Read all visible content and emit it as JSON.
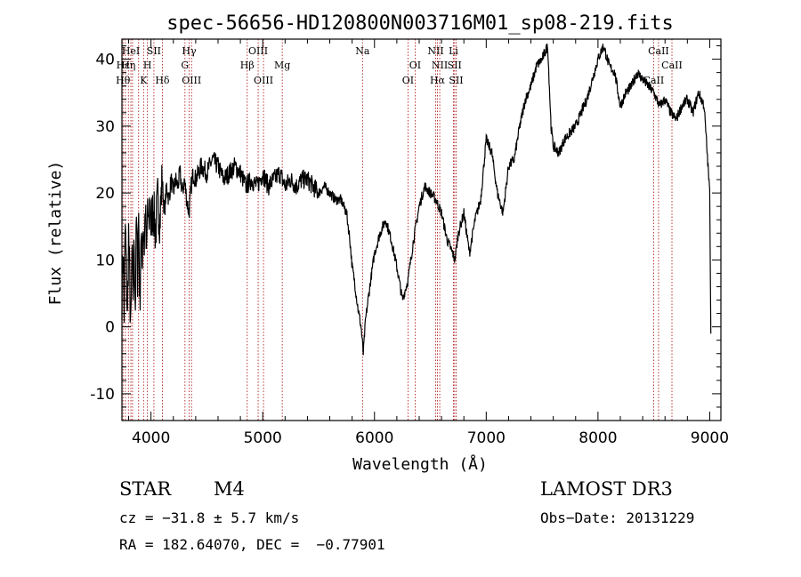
{
  "chart_data": {
    "type": "line",
    "title": "spec-56656-HD120800N003716M01_sp08-219.fits",
    "xlabel": "Wavelength (Å)",
    "ylabel": "Flux (relative)",
    "xlim": [
      3740,
      9100
    ],
    "ylim": [
      -14,
      43
    ],
    "xticks": [
      4000,
      5000,
      6000,
      7000,
      8000,
      9000
    ],
    "yticks": [
      -10,
      0,
      10,
      20,
      30,
      40
    ],
    "grid": false,
    "line_color": "#000000",
    "marker_color": "#b22222",
    "series": [
      {
        "x": [
          3740,
          3750,
          3760,
          3770,
          3780,
          3790,
          3800,
          3810,
          3820,
          3830,
          3840,
          3850,
          3860,
          3870,
          3880,
          3890,
          3900,
          3910,
          3920,
          3930,
          3940,
          3950,
          3960,
          3970,
          3980,
          3990,
          4000,
          4020,
          4040,
          4060,
          4080,
          4100,
          4120,
          4140,
          4160,
          4180,
          4200,
          4220,
          4240,
          4260,
          4280,
          4300,
          4320,
          4340,
          4360,
          4380,
          4400,
          4450,
          4500,
          4550,
          4600,
          4650,
          4700,
          4750,
          4800,
          4850,
          4900,
          4950,
          5000,
          5050,
          5100,
          5150,
          5200,
          5250,
          5300,
          5350,
          5400,
          5450,
          5500,
          5550,
          5600,
          5650,
          5700,
          5750,
          5780,
          5800,
          5820,
          5850,
          5880,
          5900,
          5920,
          5950,
          6000,
          6050,
          6100,
          6150,
          6200,
          6250,
          6300,
          6350,
          6400,
          6450,
          6500,
          6550,
          6600,
          6650,
          6700,
          6720,
          6750,
          6800,
          6850,
          6900,
          6950,
          7000,
          7050,
          7100,
          7150,
          7200,
          7250,
          7300,
          7350,
          7400,
          7450,
          7500,
          7550,
          7580,
          7600,
          7650,
          7700,
          7750,
          7800,
          7850,
          7900,
          7950,
          8000,
          8050,
          8100,
          8150,
          8200,
          8250,
          8300,
          8350,
          8400,
          8450,
          8500,
          8550,
          8600,
          8650,
          8700,
          8750,
          8800,
          8850,
          8900,
          8950,
          9000,
          9010
        ],
        "y": [
          5,
          12,
          2,
          15,
          8,
          1,
          14,
          6,
          -1,
          11,
          5,
          13,
          3,
          16,
          8,
          17,
          2,
          14,
          9,
          16,
          12,
          18,
          9,
          19,
          13,
          20,
          15,
          18,
          14,
          19,
          16,
          22,
          17,
          21,
          19,
          22,
          20,
          22,
          21,
          23,
          20,
          22,
          19,
          17,
          21,
          23,
          22,
          24,
          23,
          25,
          24,
          22,
          23,
          24,
          23,
          21,
          22,
          21,
          23,
          21,
          22,
          23,
          21,
          22,
          21,
          22,
          22,
          21,
          20,
          21,
          20,
          19,
          19,
          17,
          13,
          9,
          7,
          3,
          0,
          -4,
          1,
          5,
          11,
          14,
          16,
          13,
          9,
          4,
          7,
          13,
          18,
          21,
          20,
          19,
          17,
          13,
          11,
          10,
          14,
          17,
          11,
          16,
          19,
          28,
          26,
          20,
          17,
          24,
          25,
          30,
          34,
          36,
          39,
          40,
          42,
          30,
          27,
          26,
          28,
          29,
          30,
          32,
          34,
          37,
          40,
          42,
          39,
          38,
          33,
          35,
          36,
          38,
          37,
          36,
          35,
          33,
          34,
          32,
          31,
          33,
          34,
          32,
          35,
          33,
          20,
          -1
        ]
      }
    ],
    "lines": [
      {
        "wl": 3750,
        "labels": [
          {
            "text": "Hε",
            "row": 2
          },
          {
            "text": "Hθ",
            "row": 3
          }
        ]
      },
      {
        "wl": 3771,
        "labels": []
      },
      {
        "wl": 3798,
        "labels": [
          {
            "text": "Hη",
            "row": 2
          }
        ]
      },
      {
        "wl": 3820,
        "labels": [
          {
            "text": "HeI",
            "row": 1
          }
        ]
      },
      {
        "wl": 3835,
        "labels": []
      },
      {
        "wl": 3889,
        "labels": []
      },
      {
        "wl": 3934,
        "labels": [
          {
            "text": "K",
            "row": 3
          }
        ]
      },
      {
        "wl": 3968,
        "labels": [
          {
            "text": "H",
            "row": 2
          }
        ]
      },
      {
        "wl": 4026,
        "labels": [
          {
            "text": "SII",
            "row": 1
          }
        ]
      },
      {
        "wl": 4102,
        "labels": [
          {
            "text": "Hδ",
            "row": 3
          }
        ]
      },
      {
        "wl": 4304,
        "labels": [
          {
            "text": "G",
            "row": 2
          }
        ]
      },
      {
        "wl": 4341,
        "labels": [
          {
            "text": "Hγ",
            "row": 1
          }
        ]
      },
      {
        "wl": 4363,
        "labels": [
          {
            "text": "OIII",
            "row": 3
          }
        ]
      },
      {
        "wl": 4861,
        "labels": [
          {
            "text": "Hβ",
            "row": 2
          }
        ]
      },
      {
        "wl": 4959,
        "labels": [
          {
            "text": "OIII",
            "row": 1
          }
        ]
      },
      {
        "wl": 5007,
        "labels": [
          {
            "text": "OIII",
            "row": 3
          }
        ]
      },
      {
        "wl": 5175,
        "labels": [
          {
            "text": "Mg",
            "row": 2
          }
        ]
      },
      {
        "wl": 5893,
        "labels": [
          {
            "text": "Na",
            "row": 1
          }
        ]
      },
      {
        "wl": 6300,
        "labels": [
          {
            "text": "OI",
            "row": 3
          }
        ]
      },
      {
        "wl": 6364,
        "labels": [
          {
            "text": "OI",
            "row": 2
          }
        ]
      },
      {
        "wl": 6548,
        "labels": [
          {
            "text": "NII",
            "row": 1
          }
        ]
      },
      {
        "wl": 6563,
        "labels": [
          {
            "text": "Hα",
            "row": 3
          }
        ]
      },
      {
        "wl": 6584,
        "labels": [
          {
            "text": "NII",
            "row": 2
          }
        ]
      },
      {
        "wl": 6707,
        "labels": [
          {
            "text": "Li",
            "row": 1
          }
        ]
      },
      {
        "wl": 6717,
        "labels": [
          {
            "text": "SII",
            "row": 2
          }
        ]
      },
      {
        "wl": 6731,
        "labels": [
          {
            "text": "SII",
            "row": 3
          }
        ]
      },
      {
        "wl": 8498,
        "labels": [
          {
            "text": "CaII",
            "row": 3
          }
        ]
      },
      {
        "wl": 8542,
        "labels": [
          {
            "text": "CaII",
            "row": 1
          }
        ]
      },
      {
        "wl": 8662,
        "labels": [
          {
            "text": "CaII",
            "row": 2
          }
        ]
      }
    ]
  },
  "footer": {
    "class_label": "STAR",
    "subclass": "M4",
    "survey": "LAMOST DR3",
    "cz": "cz = −31.8 ± 5.7 km/s",
    "obs_date": "Obs−Date: 20131229",
    "coords": "RA = 182.64070, DEC =  −0.77901"
  }
}
